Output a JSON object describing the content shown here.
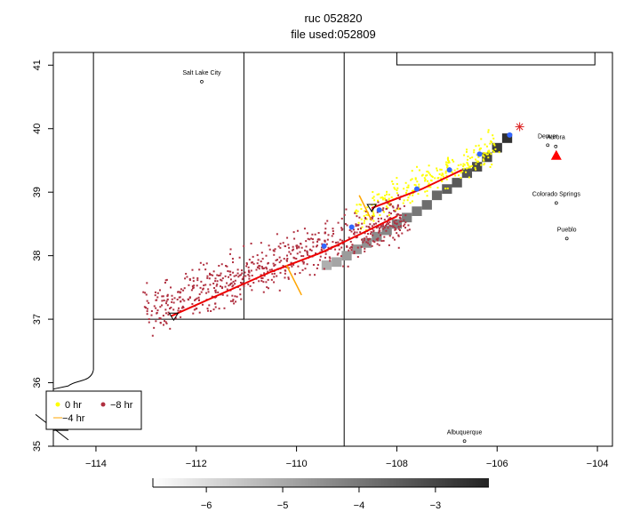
{
  "chart_data": {
    "type": "scatter",
    "title": "ruc 052820",
    "subtitle": "file used:052809",
    "xlim": [
      -114.85,
      -103.7
    ],
    "ylim": [
      35,
      41.2
    ],
    "x_ticks": [
      -114,
      -112,
      -110,
      -108,
      -106,
      -104
    ],
    "x_tick_labels": [
      "−114",
      "−112",
      "−110",
      "−108",
      "−106",
      "−104"
    ],
    "y_ticks": [
      35,
      36,
      37,
      38,
      39,
      40,
      41
    ],
    "y_tick_labels": [
      "35",
      "36",
      "37",
      "38",
      "39",
      "40",
      "41"
    ],
    "cities": [
      {
        "name": "Salt Lake City",
        "lon": -111.89,
        "lat": 40.74
      },
      {
        "name": "Denver",
        "lon": -104.99,
        "lat": 39.74
      },
      {
        "name": "Aurora",
        "lon": -104.83,
        "lat": 39.72
      },
      {
        "name": "Colorado Springs",
        "lon": -104.82,
        "lat": 38.83
      },
      {
        "name": "Pueblo",
        "lon": -104.61,
        "lat": 38.27
      },
      {
        "name": "Albuquerque",
        "lon": -106.65,
        "lat": 35.08
      }
    ],
    "site_marker": {
      "lon": -104.82,
      "lat": 39.58,
      "color": "#ff0000"
    },
    "source_marker": {
      "lon": -105.55,
      "lat": 40.03,
      "color": "#dd2222"
    },
    "track_lines": [
      {
        "color": "#ee0000",
        "points": [
          [
            -112.5,
            37.05
          ],
          [
            -111.5,
            37.4
          ],
          [
            -110.5,
            37.75
          ],
          [
            -109.5,
            38.05
          ],
          [
            -108.7,
            38.35
          ],
          [
            -108.0,
            38.62
          ]
        ]
      },
      {
        "color": "#ee0000",
        "points": [
          [
            -108.5,
            38.75
          ],
          [
            -107.5,
            39.05
          ],
          [
            -106.7,
            39.35
          ]
        ]
      }
    ],
    "blue_points": [
      [
        -105.75,
        39.9
      ],
      [
        -106.35,
        39.6
      ],
      [
        -106.95,
        39.35
      ],
      [
        -107.6,
        39.05
      ],
      [
        -108.35,
        38.72
      ],
      [
        -108.9,
        38.45
      ],
      [
        -109.45,
        38.15
      ]
    ],
    "triangle_markers": [
      [
        -112.45,
        37.04
      ],
      [
        -108.5,
        38.75
      ]
    ],
    "orange_ticks": [
      {
        "x1": -110.2,
        "y1": 37.85,
        "x2": -109.9,
        "y2": 37.38
      },
      {
        "x1": -108.75,
        "y1": 38.95,
        "x2": -108.5,
        "y2": 38.55
      }
    ],
    "grid_cells": [
      {
        "lon": -105.8,
        "lat": 39.85,
        "value": -2.6
      },
      {
        "lon": -106.0,
        "lat": 39.7,
        "value": -2.8
      },
      {
        "lon": -106.2,
        "lat": 39.55,
        "value": -3.0
      },
      {
        "lon": -106.4,
        "lat": 39.4,
        "value": -3.1
      },
      {
        "lon": -106.6,
        "lat": 39.3,
        "value": -3.3
      },
      {
        "lon": -106.8,
        "lat": 39.15,
        "value": -3.4
      },
      {
        "lon": -107.0,
        "lat": 39.05,
        "value": -3.5
      },
      {
        "lon": -107.2,
        "lat": 38.95,
        "value": -3.7
      },
      {
        "lon": -107.4,
        "lat": 38.8,
        "value": -3.8
      },
      {
        "lon": -107.6,
        "lat": 38.7,
        "value": -4.0
      },
      {
        "lon": -107.8,
        "lat": 38.6,
        "value": -4.1
      },
      {
        "lon": -108.0,
        "lat": 38.5,
        "value": -4.2
      },
      {
        "lon": -108.2,
        "lat": 38.4,
        "value": -4.3
      },
      {
        "lon": -108.4,
        "lat": 38.3,
        "value": -4.4
      },
      {
        "lon": -108.6,
        "lat": 38.2,
        "value": -4.5
      },
      {
        "lon": -108.8,
        "lat": 38.1,
        "value": -4.6
      },
      {
        "lon": -109.0,
        "lat": 38.0,
        "value": -4.7
      },
      {
        "lon": -109.2,
        "lat": 37.9,
        "value": -4.9
      },
      {
        "lon": -109.4,
        "lat": 37.85,
        "value": -5.1
      }
    ],
    "colorbar": {
      "range": [
        -6.7,
        -2.3
      ],
      "ticks": [
        -6,
        -5,
        -4,
        -3
      ],
      "tick_labels": [
        "−6",
        "−5",
        "−4",
        "−3"
      ],
      "color_low": "#ffffff",
      "color_high": "#222222"
    },
    "legend": {
      "position": "bottom-left",
      "items": [
        {
          "label": "0 hr",
          "color": "#ffff00"
        },
        {
          "label": "−8 hr",
          "color": "#b03040"
        },
        {
          "label": "−4 hr",
          "color": "#ffa500"
        }
      ]
    },
    "scatter_clouds": [
      {
        "name": "0 hr",
        "color": "#ffff00",
        "along_start": [
          -108.8,
          38.6
        ],
        "along_end": [
          -106.0,
          39.75
        ],
        "spread": 0.12,
        "count": 260
      },
      {
        "name": "−8 hr",
        "color": "#b03040",
        "along_start": [
          -113.0,
          37.1
        ],
        "along_end": [
          -107.8,
          38.65
        ],
        "spread": 0.18,
        "count": 700
      }
    ]
  }
}
